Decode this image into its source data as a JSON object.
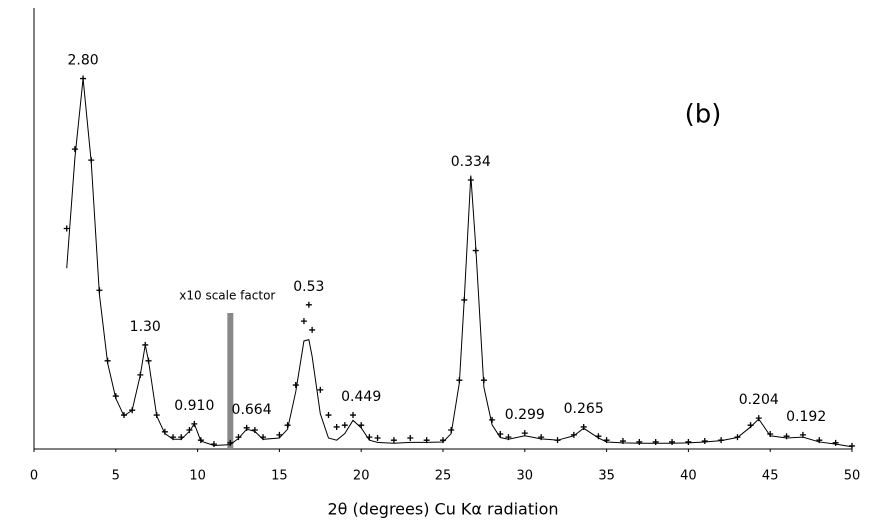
{
  "chart_data": {
    "type": "scatter_line",
    "panel_label": "(b)",
    "x_label": "2θ (degrees) Cu Kα radiation",
    "x": [
      2,
      2.5,
      3,
      3.5,
      4,
      4.5,
      5,
      5.5,
      6,
      6.5,
      6.8,
      7,
      7.5,
      8,
      8.5,
      9,
      9.5,
      9.8,
      10.2,
      11,
      12,
      12.5,
      13,
      13.5,
      14,
      15,
      15.5,
      16,
      16.5,
      16.8,
      17,
      17.5,
      18,
      18.5,
      19,
      19.5,
      20,
      20.5,
      21,
      22,
      23,
      24,
      25,
      25.5,
      26,
      26.3,
      26.7,
      27,
      27.5,
      28,
      28.5,
      29,
      30,
      31,
      32,
      33,
      33.6,
      34.5,
      35,
      36,
      37,
      38,
      39,
      40,
      41,
      42,
      43,
      43.8,
      44.3,
      45,
      46,
      47,
      48,
      49,
      50
    ],
    "series": [
      {
        "color": "#000000",
        "marker": "plus",
        "values": [
          50,
          68,
          84,
          65.5,
          36,
          20,
          12,
          7.7,
          8.8,
          16.8,
          23.6,
          20,
          7.7,
          3.9,
          2.7,
          2.7,
          4.3,
          5.7,
          2,
          1.1,
          1.4,
          2.7,
          4.8,
          4.3,
          2.7,
          3.2,
          5.4,
          14.5,
          29,
          32.7,
          27,
          13.4,
          7.7,
          5,
          5.4,
          7.7,
          5.4,
          2.7,
          2.5,
          2,
          2.5,
          2,
          2,
          4.3,
          15.6,
          33.8,
          61,
          45,
          15.6,
          6.6,
          3.4,
          2.7,
          3.6,
          2.7,
          2,
          3.2,
          5,
          2.9,
          2,
          1.8,
          1.6,
          1.6,
          1.6,
          1.6,
          1.8,
          2,
          2.7,
          5.4,
          7,
          3.4,
          2.9,
          3.2,
          2,
          1.4,
          0.7
        ]
      },
      {
        "color": "#000000",
        "marker": "none",
        "values": [
          41,
          66,
          84,
          65,
          35,
          19.5,
          11.5,
          7.5,
          8.8,
          16.8,
          23.6,
          20,
          7.5,
          3.5,
          2.2,
          2.2,
          4,
          5.7,
          1.8,
          0.8,
          1,
          2.4,
          4.5,
          4,
          2.2,
          2.5,
          4.5,
          13,
          24.5,
          24.8,
          21,
          8,
          2.5,
          2,
          3.5,
          6.5,
          4.8,
          2,
          1.5,
          1.3,
          1.5,
          1.5,
          1.6,
          3.5,
          15,
          34,
          62,
          46,
          14,
          5.5,
          2.6,
          2.2,
          3,
          2.3,
          2,
          3,
          4.7,
          2.5,
          1.6,
          1.4,
          1.3,
          1.3,
          1.3,
          1.4,
          1.6,
          1.9,
          2.6,
          5,
          6.8,
          3,
          2.5,
          2.7,
          1.6,
          1.1,
          0.5
        ]
      }
    ],
    "xlim": [
      0,
      50
    ],
    "ylim": [
      0,
      100
    ],
    "xticks": [
      0,
      5,
      10,
      15,
      20,
      25,
      30,
      35,
      40,
      45,
      50
    ],
    "annotations": [
      {
        "text": "2.80",
        "x": 3.0
      },
      {
        "text": "1.30",
        "x": 6.8
      },
      {
        "text": "0.910",
        "x": 9.8
      },
      {
        "text": "0.664",
        "x": 13.3
      },
      {
        "text": "0.53",
        "x": 16.8
      },
      {
        "text": "0.449",
        "x": 20
      },
      {
        "text": "0.334",
        "x": 26.7
      },
      {
        "text": "0.299",
        "x": 30
      },
      {
        "text": "0.265",
        "x": 33.6
      },
      {
        "text": "0.204",
        "x": 44.3
      },
      {
        "text": "0.192",
        "x": 47.2
      }
    ],
    "scale_marker": {
      "text": "x10 scale factor",
      "x": 12,
      "color": "#888888"
    }
  }
}
